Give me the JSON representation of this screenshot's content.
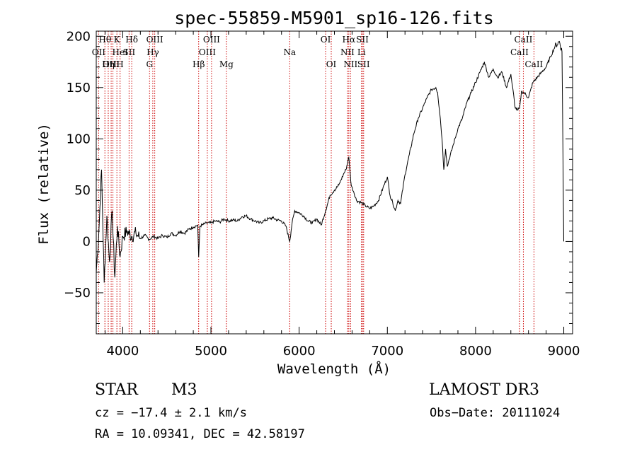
{
  "chart_data": {
    "type": "line",
    "title": "spec-55859-M5901_sp16-126.fits",
    "xlabel": "Wavelength (Å)",
    "ylabel": "Flux (relative)",
    "xlim": [
      3700,
      9100
    ],
    "ylim": [
      -90,
      205
    ],
    "x_ticks": [
      4000,
      5000,
      6000,
      7000,
      8000,
      9000
    ],
    "y_ticks": [
      -50,
      0,
      50,
      100,
      150,
      200
    ],
    "line_color": "#000000",
    "marker_color": "#cc0000",
    "spectrum": {
      "name": "flux",
      "x": [
        3700,
        3730,
        3760,
        3790,
        3820,
        3850,
        3880,
        3910,
        3940,
        3970,
        4000,
        4050,
        4100,
        4150,
        4200,
        4250,
        4300,
        4350,
        4400,
        4450,
        4500,
        4550,
        4600,
        4650,
        4700,
        4750,
        4800,
        4850,
        4861,
        4875,
        4900,
        4950,
        5000,
        5050,
        5100,
        5150,
        5200,
        5250,
        5300,
        5350,
        5400,
        5450,
        5500,
        5550,
        5600,
        5650,
        5700,
        5750,
        5800,
        5850,
        5893,
        5920,
        5950,
        6000,
        6050,
        6100,
        6150,
        6200,
        6250,
        6300,
        6350,
        6400,
        6450,
        6500,
        6530,
        6563,
        6590,
        6620,
        6650,
        6700,
        6750,
        6800,
        6850,
        6900,
        6950,
        7000,
        7030,
        7060,
        7090,
        7120,
        7150,
        7200,
        7250,
        7300,
        7350,
        7400,
        7450,
        7500,
        7550,
        7570,
        7600,
        7620,
        7640,
        7660,
        7680,
        7700,
        7750,
        7800,
        7850,
        7900,
        7950,
        8000,
        8050,
        8100,
        8150,
        8200,
        8250,
        8300,
        8350,
        8400,
        8450,
        8480,
        8500,
        8520,
        8550,
        8600,
        8650,
        8700,
        8750,
        8800,
        8850,
        8900,
        8950,
        8980,
        9000
      ],
      "y": [
        -30,
        10,
        70,
        -40,
        25,
        -20,
        30,
        -35,
        15,
        -15,
        5,
        10,
        5,
        8,
        3,
        6,
        2,
        5,
        3,
        6,
        4,
        8,
        6,
        10,
        8,
        12,
        14,
        16,
        -15,
        15,
        16,
        18,
        18,
        20,
        19,
        22,
        20,
        21,
        20,
        24,
        25,
        22,
        20,
        18,
        20,
        22,
        23,
        21,
        20,
        15,
        0,
        18,
        30,
        28,
        25,
        20,
        18,
        22,
        16,
        30,
        45,
        50,
        55,
        65,
        70,
        82,
        55,
        48,
        40,
        38,
        35,
        32,
        35,
        40,
        52,
        63,
        45,
        38,
        30,
        40,
        37,
        65,
        85,
        105,
        120,
        130,
        140,
        148,
        150,
        145,
        120,
        100,
        70,
        90,
        73,
        80,
        95,
        110,
        120,
        135,
        145,
        155,
        165,
        175,
        160,
        168,
        160,
        165,
        150,
        163,
        130,
        128,
        130,
        146,
        145,
        140,
        155,
        160,
        165,
        170,
        180,
        190,
        195,
        185,
        0
      ]
    },
    "line_markers": [
      {
        "wavelength": 3727,
        "label": "OII",
        "row": 1
      },
      {
        "wavelength": 3798,
        "label": "Hθ",
        "row": 0
      },
      {
        "wavelength": 3836,
        "label": "Hη",
        "row": 2
      },
      {
        "wavelength": 3869,
        "label": "OIII",
        "row": 2
      },
      {
        "wavelength": 3889,
        "label": "H",
        "row": 2
      },
      {
        "wavelength": 3934,
        "label": "K",
        "row": 0
      },
      {
        "wavelength": 3969,
        "label": "H",
        "row": 2
      },
      {
        "wavelength": 3970,
        "label": "HeI",
        "row": 1
      },
      {
        "wavelength": 4072,
        "label": "SII",
        "row": 1
      },
      {
        "wavelength": 4102,
        "label": "Hδ",
        "row": 0
      },
      {
        "wavelength": 4304,
        "label": "G",
        "row": 2
      },
      {
        "wavelength": 4341,
        "label": "Hγ",
        "row": 1
      },
      {
        "wavelength": 4363,
        "label": "OIII",
        "row": 0
      },
      {
        "wavelength": 4861,
        "label": "Hβ",
        "row": 2
      },
      {
        "wavelength": 4959,
        "label": "OIII",
        "row": 1
      },
      {
        "wavelength": 5007,
        "label": "OIII",
        "row": 0
      },
      {
        "wavelength": 5175,
        "label": "Mg",
        "row": 2
      },
      {
        "wavelength": 5893,
        "label": "Na",
        "row": 1
      },
      {
        "wavelength": 6300,
        "label": "OI",
        "row": 0
      },
      {
        "wavelength": 6364,
        "label": "OI",
        "row": 2
      },
      {
        "wavelength": 6548,
        "label": "NII",
        "row": 1
      },
      {
        "wavelength": 6563,
        "label": "Hα",
        "row": 0
      },
      {
        "wavelength": 6583,
        "label": "NII",
        "row": 2
      },
      {
        "wavelength": 6707,
        "label": "Li",
        "row": 1
      },
      {
        "wavelength": 6717,
        "label": "SII",
        "row": 0
      },
      {
        "wavelength": 6731,
        "label": "SII",
        "row": 2
      },
      {
        "wavelength": 8498,
        "label": "CaII",
        "row": 1
      },
      {
        "wavelength": 8542,
        "label": "CaII",
        "row": 0
      },
      {
        "wavelength": 8662,
        "label": "CaII",
        "row": 2
      }
    ]
  },
  "info": {
    "object_class": "STAR",
    "subclass": "M3",
    "survey": "LAMOST DR3",
    "redshift": "cz = −17.4 ± 2.1 km/s",
    "obs_date": "Obs−Date: 20111024",
    "coords": "RA =  10.09341, DEC =  42.58197"
  }
}
